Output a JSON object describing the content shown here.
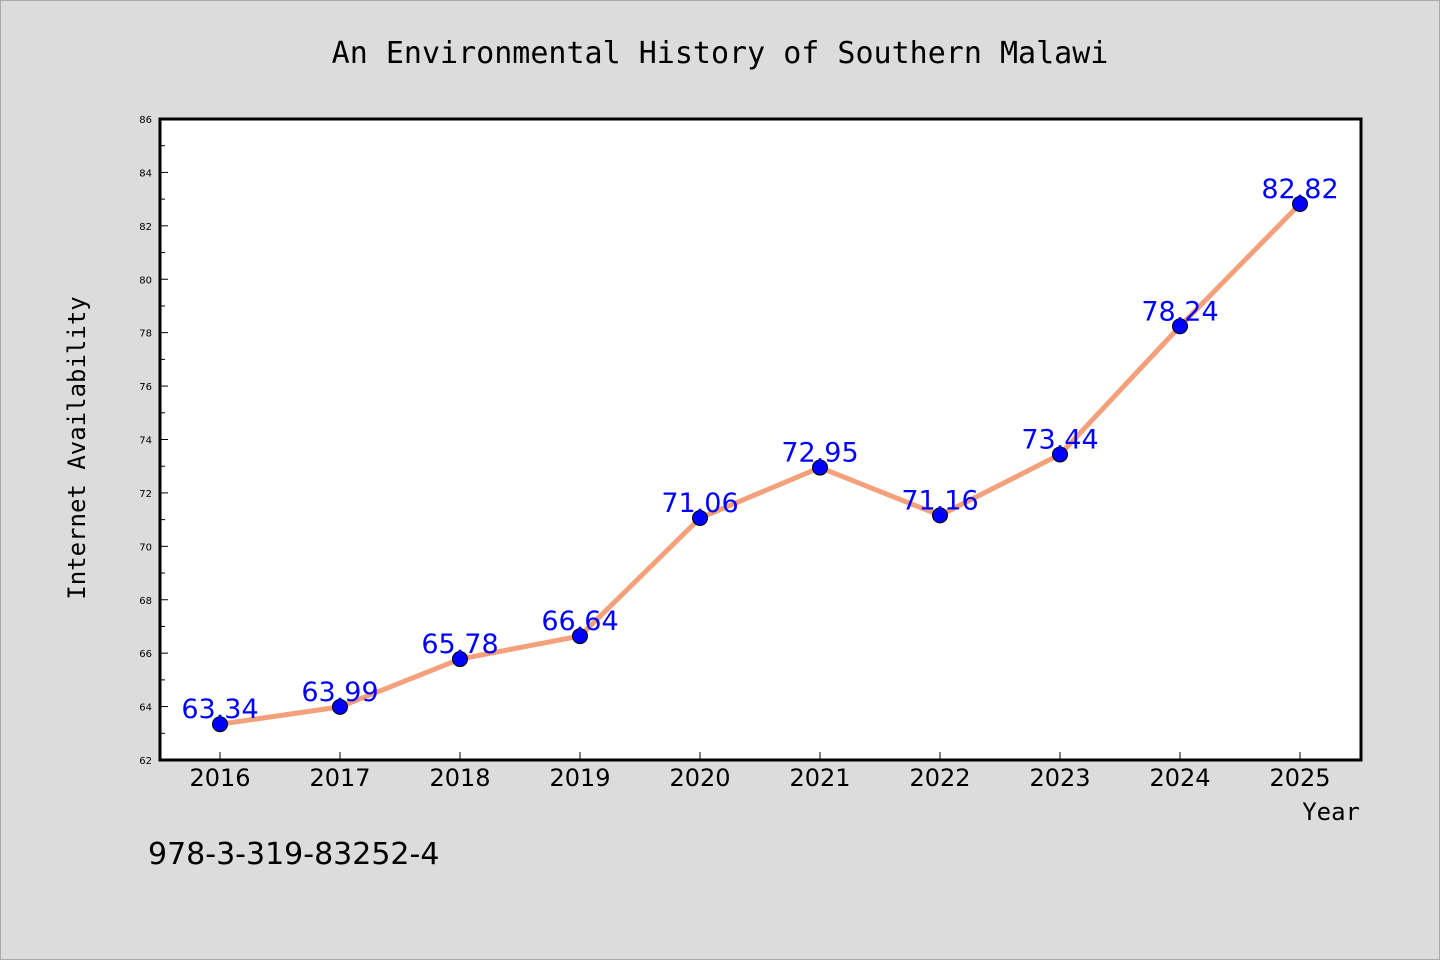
{
  "chart_data": {
    "type": "line",
    "title": "An Environmental History of Southern Malawi",
    "xlabel": "Year",
    "ylabel": "Internet Availability",
    "categories": [
      "2016",
      "2017",
      "2018",
      "2019",
      "2020",
      "2021",
      "2022",
      "2023",
      "2024",
      "2025"
    ],
    "series": [
      {
        "values": [
          63.34,
          63.99,
          65.78,
          66.64,
          71.06,
          72.95,
          71.16,
          73.44,
          78.24,
          82.82
        ],
        "labels": [
          "63.34",
          "63.99",
          "65.78",
          "66.64",
          "71.06",
          "72.95",
          "71.16",
          "73.44",
          "78.24",
          "82.82"
        ],
        "line_color": "#f4a07a",
        "marker_color": "#0000ff"
      }
    ],
    "ylim": [
      62,
      86
    ],
    "yticks": [
      "62",
      "64",
      "66",
      "68",
      "70",
      "72",
      "74",
      "76",
      "78",
      "80",
      "82",
      "84",
      "86"
    ],
    "grid": false,
    "legend": "none"
  },
  "footer": {
    "isbn": "978-3-319-83252-4"
  }
}
